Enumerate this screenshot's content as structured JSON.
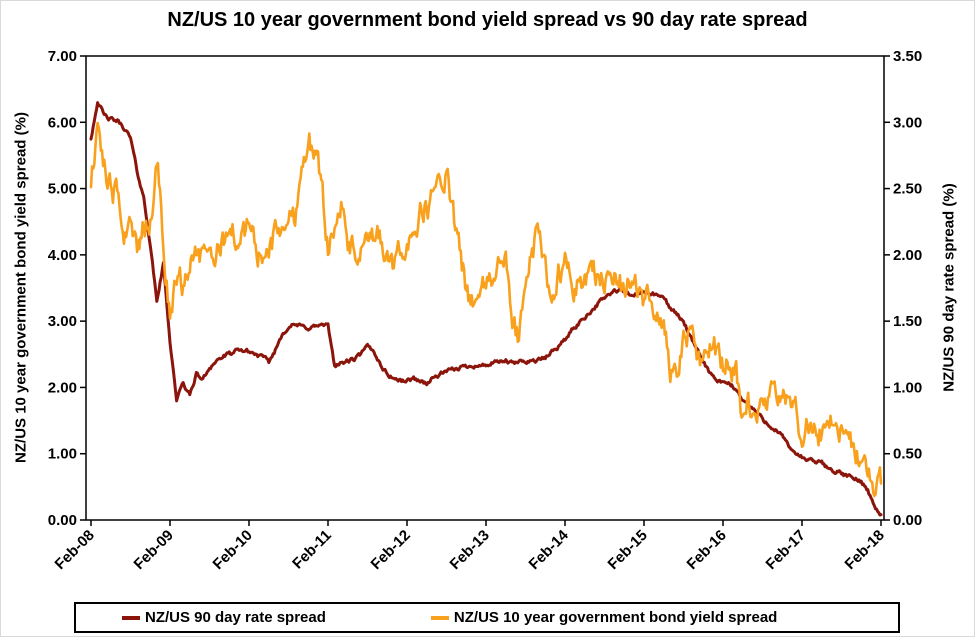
{
  "chart": {
    "title": "NZ/US 10 year government bond yield spread vs 90 day rate spread",
    "left_axis": {
      "title": "NZ/US 10 year government bond yield spread (%)",
      "min": 0,
      "max": 7,
      "step": 1,
      "tick_labels": [
        "0.00",
        "1.00",
        "2.00",
        "3.00",
        "4.00",
        "5.00",
        "6.00",
        "7.00"
      ]
    },
    "right_axis": {
      "title": "NZ/US 90 day rate spread (%)",
      "min": 0,
      "max": 3.5,
      "step": 0.5,
      "tick_labels": [
        "0.00",
        "0.50",
        "1.00",
        "1.50",
        "2.00",
        "2.50",
        "3.00",
        "3.50"
      ]
    },
    "x_axis": {
      "tick_labels": [
        "Feb-08",
        "Feb-09",
        "Feb-10",
        "Feb-11",
        "Feb-12",
        "Feb-13",
        "Feb-14",
        "Feb-15",
        "Feb-16",
        "Feb-17",
        "Feb-18"
      ]
    },
    "legend": {
      "items": [
        {
          "label": "NZ/US 90 day rate spread",
          "color": "#8B150B"
        },
        {
          "label": "NZ/US 10 year government bond yield spread",
          "color": "#F9A11D"
        }
      ]
    }
  },
  "chart_data": {
    "type": "line",
    "title": "NZ/US 10 year government bond yield spread vs 90 day rate spread",
    "x_tick_labels": [
      "Feb-08",
      "Feb-09",
      "Feb-10",
      "Feb-11",
      "Feb-12",
      "Feb-13",
      "Feb-14",
      "Feb-15",
      "Feb-16",
      "Feb-17",
      "Feb-18"
    ],
    "x_sampling": "monthly, Feb-2008 to Feb-2018, 121 points per series (values estimated from plot)",
    "grid": false,
    "legend_position": "bottom",
    "axes": {
      "left": {
        "label": "NZ/US 10 year government bond yield spread (%)",
        "range": [
          0,
          7
        ],
        "step": 1
      },
      "right": {
        "label": "NZ/US 90 day rate spread (%)",
        "range": [
          0,
          3.5
        ],
        "step": 0.5
      }
    },
    "series": [
      {
        "name": "NZ/US 90 day rate spread",
        "color": "#8B150B",
        "axis": "right",
        "axis_range": [
          0,
          3.5
        ],
        "stroke_width": 3,
        "jitter": 0.03,
        "values": [
          2.88,
          3.16,
          3.05,
          3.02,
          3.01,
          2.96,
          2.88,
          2.63,
          2.43,
          2.08,
          1.65,
          1.93,
          1.35,
          0.91,
          1.03,
          0.94,
          1.1,
          1.06,
          1.15,
          1.2,
          1.23,
          1.25,
          1.27,
          1.28,
          1.27,
          1.25,
          1.23,
          1.19,
          1.28,
          1.4,
          1.46,
          1.47,
          1.46,
          1.45,
          1.46,
          1.47,
          1.46,
          1.17,
          1.18,
          1.2,
          1.21,
          1.25,
          1.31,
          1.27,
          1.17,
          1.1,
          1.07,
          1.05,
          1.05,
          1.07,
          1.05,
          1.03,
          1.07,
          1.1,
          1.12,
          1.13,
          1.15,
          1.16,
          1.17,
          1.16,
          1.17,
          1.18,
          1.19,
          1.2,
          1.18,
          1.19,
          1.2,
          1.2,
          1.21,
          1.22,
          1.27,
          1.31,
          1.36,
          1.43,
          1.48,
          1.53,
          1.58,
          1.63,
          1.68,
          1.71,
          1.73,
          1.72,
          1.69,
          1.71,
          1.72,
          1.71,
          1.69,
          1.68,
          1.6,
          1.55,
          1.5,
          1.38,
          1.28,
          1.2,
          1.11,
          1.05,
          1.03,
          1.03,
          0.98,
          0.91,
          0.86,
          0.82,
          0.76,
          0.72,
          0.68,
          0.63,
          0.55,
          0.51,
          0.47,
          0.45,
          0.44,
          0.43,
          0.39,
          0.37,
          0.35,
          0.33,
          0.31,
          0.29,
          0.23,
          0.1,
          0.04
        ]
      },
      {
        "name": "NZ/US 10 year government bond yield spread",
        "color": "#F9A11D",
        "axis": "left",
        "axis_range": [
          0,
          7
        ],
        "stroke_width": 2.6,
        "jitter": 0.38,
        "values": [
          5.15,
          5.85,
          5.3,
          5.0,
          4.85,
          4.35,
          4.55,
          4.1,
          4.4,
          4.45,
          5.55,
          4.2,
          3.0,
          3.7,
          3.55,
          3.9,
          4.1,
          3.85,
          4.1,
          3.95,
          4.25,
          4.35,
          4.3,
          4.2,
          4.5,
          4.1,
          3.9,
          4.1,
          4.3,
          4.45,
          4.5,
          4.62,
          5.3,
          5.8,
          5.5,
          5.15,
          4.1,
          4.55,
          4.7,
          4.2,
          4.0,
          4.02,
          4.15,
          4.2,
          4.25,
          3.9,
          3.8,
          4.0,
          4.2,
          4.4,
          4.6,
          4.7,
          4.9,
          5.1,
          5.22,
          4.6,
          4.0,
          3.5,
          3.3,
          3.35,
          3.5,
          3.7,
          3.9,
          3.85,
          3.0,
          2.75,
          3.4,
          4.0,
          4.4,
          3.8,
          3.4,
          3.7,
          3.9,
          3.6,
          3.5,
          3.65,
          3.9,
          3.7,
          3.55,
          3.8,
          3.6,
          3.5,
          3.55,
          3.45,
          3.3,
          3.35,
          3.2,
          2.9,
          2.25,
          2.3,
          2.7,
          2.8,
          2.5,
          2.25,
          2.7,
          2.55,
          2.3,
          2.35,
          2.15,
          1.45,
          1.7,
          1.6,
          1.75,
          1.8,
          1.9,
          1.7,
          1.9,
          1.8,
          1.2,
          1.45,
          1.35,
          1.3,
          1.45,
          1.55,
          1.35,
          1.25,
          1.0,
          0.9,
          0.75,
          0.4,
          0.55
        ]
      }
    ]
  }
}
